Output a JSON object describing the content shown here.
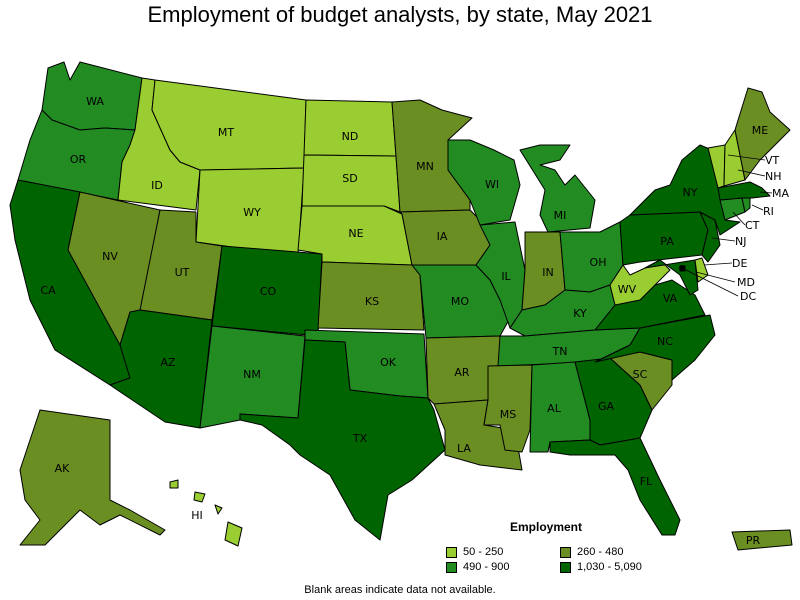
{
  "title": "Employment of budget analysts, by state, May 2021",
  "legend": {
    "title": "Employment",
    "items": [
      {
        "label": "50 - 250",
        "color": "#9acd32"
      },
      {
        "label": "260 - 480",
        "color": "#6b8e23"
      },
      {
        "label": "490 - 900",
        "color": "#228b22"
      },
      {
        "label": "1,030 - 5,090",
        "color": "#006400"
      }
    ]
  },
  "footnote": "Blank areas indicate data not available.",
  "states": {
    "WA": {
      "label": "WA",
      "bin": 2
    },
    "OR": {
      "label": "OR",
      "bin": 2
    },
    "CA": {
      "label": "CA",
      "bin": 3
    },
    "NV": {
      "label": "NV",
      "bin": 1
    },
    "ID": {
      "label": "ID",
      "bin": 0
    },
    "MT": {
      "label": "MT",
      "bin": 0
    },
    "WY": {
      "label": "WY",
      "bin": 0
    },
    "UT": {
      "label": "UT",
      "bin": 1
    },
    "AZ": {
      "label": "AZ",
      "bin": 3
    },
    "CO": {
      "label": "CO",
      "bin": 3
    },
    "NM": {
      "label": "NM",
      "bin": 2
    },
    "ND": {
      "label": "ND",
      "bin": 0
    },
    "SD": {
      "label": "SD",
      "bin": 0
    },
    "NE": {
      "label": "NE",
      "bin": 0
    },
    "KS": {
      "label": "KS",
      "bin": 1
    },
    "OK": {
      "label": "OK",
      "bin": 2
    },
    "TX": {
      "label": "TX",
      "bin": 3
    },
    "MN": {
      "label": "MN",
      "bin": 1
    },
    "IA": {
      "label": "IA",
      "bin": 1
    },
    "MO": {
      "label": "MO",
      "bin": 2
    },
    "AR": {
      "label": "AR",
      "bin": 1
    },
    "LA": {
      "label": "LA",
      "bin": 1
    },
    "WI": {
      "label": "WI",
      "bin": 2
    },
    "IL": {
      "label": "IL",
      "bin": 2
    },
    "MI": {
      "label": "MI",
      "bin": 2
    },
    "IN": {
      "label": "IN",
      "bin": 1
    },
    "OH": {
      "label": "OH",
      "bin": 2
    },
    "KY": {
      "label": "KY",
      "bin": 2
    },
    "TN": {
      "label": "TN",
      "bin": 2
    },
    "MS": {
      "label": "MS",
      "bin": 1
    },
    "AL": {
      "label": "AL",
      "bin": 2
    },
    "GA": {
      "label": "GA",
      "bin": 3
    },
    "FL": {
      "label": "FL",
      "bin": 3
    },
    "SC": {
      "label": "SC",
      "bin": 1
    },
    "NC": {
      "label": "NC",
      "bin": 3
    },
    "VA": {
      "label": "VA",
      "bin": 3
    },
    "WV": {
      "label": "WV",
      "bin": 0
    },
    "MD": {
      "label": "MD",
      "bin": 3
    },
    "DE": {
      "label": "DE",
      "bin": 0
    },
    "DC": {
      "label": "DC",
      "bin": 3
    },
    "PA": {
      "label": "PA",
      "bin": 3
    },
    "NJ": {
      "label": "NJ",
      "bin": 3
    },
    "NY": {
      "label": "NY",
      "bin": 3
    },
    "CT": {
      "label": "CT",
      "bin": 2
    },
    "RI": {
      "label": "RI",
      "bin": 2
    },
    "MA": {
      "label": "MA",
      "bin": 3
    },
    "VT": {
      "label": "VT",
      "bin": 0
    },
    "NH": {
      "label": "NH",
      "bin": 0
    },
    "ME": {
      "label": "ME",
      "bin": 1
    },
    "AK": {
      "label": "AK",
      "bin": 1
    },
    "HI": {
      "label": "HI",
      "bin": 0
    },
    "PR": {
      "label": "PR",
      "bin": 1
    }
  }
}
